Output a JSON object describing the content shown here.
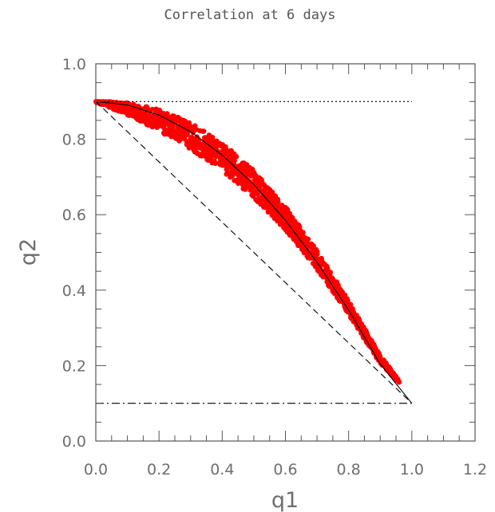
{
  "chart_data": {
    "type": "scatter",
    "title": "Correlation at 6 days",
    "xlabel": "q1",
    "ylabel": "q2",
    "xlim": [
      0.0,
      1.2
    ],
    "ylim": [
      0.0,
      1.0
    ],
    "xticks": [
      "0.0",
      "0.2",
      "0.4",
      "0.6",
      "0.8",
      "1.0",
      "1.2"
    ],
    "yticks": [
      "0.0",
      "0.2",
      "0.4",
      "0.6",
      "0.8",
      "1.0"
    ],
    "grid": false,
    "colors": {
      "scatter": "#ff0000",
      "lines": "#000000",
      "axis": "#555555"
    },
    "scatter_band": {
      "x_range": [
        0.0,
        0.96
      ],
      "upper": [
        [
          0.0,
          0.902
        ],
        [
          0.1,
          0.897
        ],
        [
          0.2,
          0.879
        ],
        [
          0.3,
          0.845
        ],
        [
          0.4,
          0.791
        ],
        [
          0.5,
          0.717
        ],
        [
          0.6,
          0.622
        ],
        [
          0.7,
          0.505
        ],
        [
          0.8,
          0.372
        ],
        [
          0.9,
          0.228
        ],
        [
          0.96,
          0.16
        ]
      ],
      "lower": [
        [
          0.0,
          0.898
        ],
        [
          0.1,
          0.865
        ],
        [
          0.2,
          0.822
        ],
        [
          0.3,
          0.774
        ],
        [
          0.4,
          0.715
        ],
        [
          0.5,
          0.645
        ],
        [
          0.6,
          0.56
        ],
        [
          0.7,
          0.455
        ],
        [
          0.8,
          0.335
        ],
        [
          0.9,
          0.205
        ],
        [
          0.96,
          0.155
        ]
      ]
    },
    "lines": [
      {
        "style": "solid",
        "points": [
          [
            0.0,
            0.9
          ],
          [
            0.1,
            0.891
          ],
          [
            0.2,
            0.864
          ],
          [
            0.3,
            0.82
          ],
          [
            0.4,
            0.758
          ],
          [
            0.5,
            0.68
          ],
          [
            0.6,
            0.585
          ],
          [
            0.7,
            0.474
          ],
          [
            0.8,
            0.347
          ],
          [
            0.9,
            0.204
          ],
          [
            1.0,
            0.1
          ]
        ]
      },
      {
        "style": "dotted",
        "points": [
          [
            0.0,
            0.9
          ],
          [
            1.0,
            0.9
          ]
        ]
      },
      {
        "style": "dashed",
        "points": [
          [
            0.0,
            0.9
          ],
          [
            1.0,
            0.1
          ]
        ]
      },
      {
        "style": "dashdot",
        "points": [
          [
            0.0,
            0.1
          ],
          [
            1.0,
            0.1
          ]
        ]
      }
    ]
  }
}
